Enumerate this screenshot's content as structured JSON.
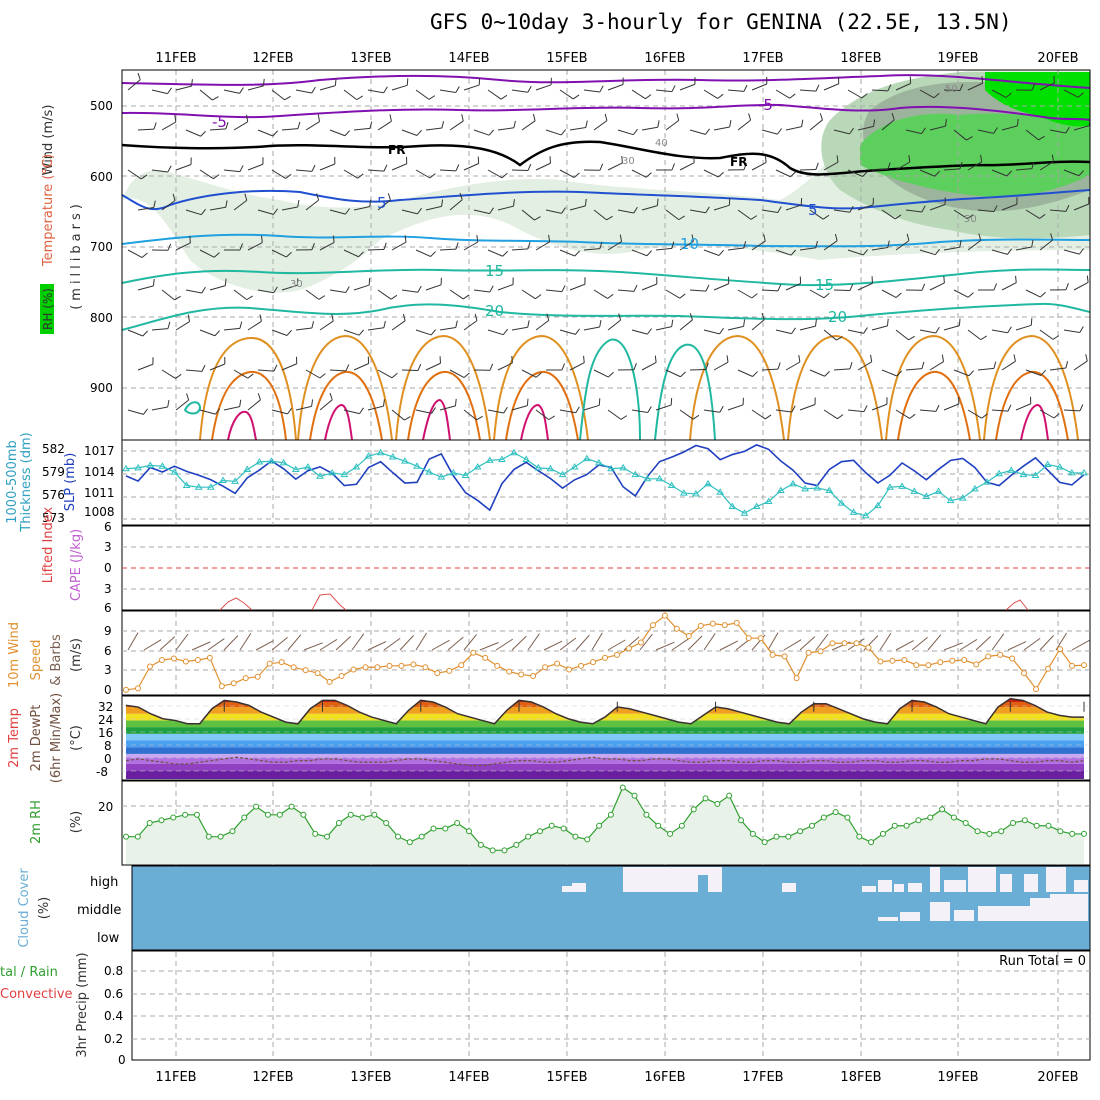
{
  "title": "GFS 0~10day 3-hourly for GENINA (22.5E, 13.5N)",
  "dates": [
    "11FEB",
    "12FEB",
    "13FEB",
    "14FEB",
    "15FEB",
    "16FEB",
    "17FEB",
    "18FEB",
    "19FEB",
    "20FEB"
  ],
  "colors": {
    "temp_warm": "#e09020",
    "temp_mid": "#20b8a0",
    "temp_cool": "#20a0e0",
    "temp_cold": "#2050d0",
    "temp_neg": "#8010b0",
    "freezing": "#000000",
    "rh_green": "#00e000",
    "slp": "#2040c0",
    "thickness": "#30c0c0",
    "wind10m": "#e09030",
    "dewpt": "#705040",
    "rh2m": "#30a030",
    "cloud": "#6aaed6",
    "cloud_gap": "#f4f2f8"
  },
  "panels": {
    "upper": {
      "ylabel_wind": "Wind (m/s)",
      "ylabel_temp": "Temperature (°C)",
      "ylabel_units": "(millibars)",
      "ylabel_rh": "RH (%)",
      "pressure_ticks": [
        "500",
        "600",
        "700",
        "800",
        "900"
      ],
      "contour_labels": [
        "-5",
        "-5",
        "FR",
        "FR",
        "5",
        "5",
        "10",
        "15",
        "15",
        "20",
        "20",
        "50",
        "30",
        "40",
        "30",
        "50"
      ]
    },
    "slp": {
      "ylabel_left": "1000-500mb",
      "ylabel_left2": "Thickness (dm)",
      "ylabel_right": "SLP (mb)",
      "thick_ticks": [
        "582",
        "579",
        "576",
        "573"
      ],
      "slp_ticks": [
        "1017",
        "1014",
        "1011",
        "1008"
      ]
    },
    "cape": {
      "ylabel_li": "Lifted Index",
      "ylabel_cape": "CAPE (J/kg)",
      "ticks": [
        "6",
        "3",
        "0",
        "3",
        "6"
      ]
    },
    "wind10": {
      "ylabel": "10m Wind",
      "ylabel2": "Speed",
      "ylabel3": "& Barbs",
      "units": "(m/s)",
      "ticks": [
        "9",
        "6",
        "3",
        "0"
      ]
    },
    "temp2m": {
      "ylabel": "2m Temp",
      "ylabel2": "2m DewPt",
      "ylabel3": "(6hr Min/Max)",
      "units": "(°C)",
      "ticks": [
        "32",
        "24",
        "16",
        "8",
        "0",
        "-8"
      ]
    },
    "rh2m": {
      "ylabel": "2m RH",
      "units": "(%)",
      "ticks": [
        "20"
      ]
    },
    "cloud": {
      "ylabel": "Cloud Cover",
      "units": "(%)",
      "levels": [
        "high",
        "middle",
        "low"
      ]
    },
    "precip": {
      "ylabel": "3hr Precip (mm)",
      "legend_total": "tal / Rain",
      "legend_conv": "Convective",
      "run_total": "Run Total = 0",
      "ticks": [
        "0.8",
        "0.6",
        "0.4",
        "0.2",
        "0"
      ]
    }
  },
  "chart_data": [
    {
      "type": "line",
      "name": "slp_thickness",
      "x_units": "3-hourly step from 10FEB 12Z",
      "series": [
        {
          "name": "SLP (mb)",
          "values": [
            1012.6,
            1011.8,
            1013.9,
            1013.2,
            1014.1,
            1013.3,
            1012.7,
            1012.0,
            1011.0,
            1009.9,
            1012.3,
            1013.5,
            1014.9,
            1013.7,
            1012.1,
            1013.4,
            1014.0,
            1013.0,
            1011.1,
            1011.3,
            1013.9,
            1014.8,
            1013.1,
            1011.5,
            1011.6,
            1015.2,
            1016.0,
            1012.6,
            1010.0,
            1008.8,
            1007.3,
            1011.4,
            1013.6,
            1014.7,
            1013.4,
            1012.2,
            1010.7,
            1012.0,
            1012.8,
            1014.3,
            1013.9,
            1010.9,
            1009.5,
            1012.5,
            1014.8,
            1015.5,
            1016.3,
            1017.3,
            1016.8,
            1015.1,
            1015.9,
            1016.4,
            1017.4,
            1016.7,
            1014.9,
            1013.5,
            1011.5,
            1011.1,
            1013.6,
            1014.8,
            1015.0,
            1013.1,
            1011.5,
            1012.7,
            1014.6,
            1013.4,
            1012.0,
            1013.6,
            1015.0,
            1015.3,
            1013.9,
            1011.6,
            1011.1,
            1012.7,
            1014.1,
            1015.4,
            1013.5,
            1011.6,
            1011.2,
            1012.8
          ]
        },
        {
          "name": "Thickness (dm)",
          "values": [
            579.2,
            579.3,
            579.6,
            579.5,
            578.8,
            577.2,
            577.0,
            577.0,
            577.8,
            577.7,
            579.1,
            580.0,
            580.1,
            579.9,
            579.1,
            579.4,
            578.3,
            578.7,
            578.5,
            579.4,
            580.7,
            581.1,
            580.6,
            580.1,
            579.5,
            578.8,
            578.2,
            578.7,
            578.4,
            579.4,
            580.2,
            580.3,
            581.1,
            580.3,
            579.3,
            579.2,
            578.5,
            579.4,
            580.4,
            579.9,
            579.2,
            579.3,
            578.5,
            578.0,
            578.0,
            577.2,
            576.3,
            576.2,
            577.4,
            576.4,
            574.7,
            573.9,
            574.7,
            575.3,
            576.6,
            577.4,
            576.8,
            576.9,
            576.6,
            575.1,
            574.0,
            573.6,
            574.8,
            577.0,
            577.1,
            576.5,
            575.9,
            576.5,
            575.4,
            575.7,
            576.8,
            577.6,
            578.6,
            579.0,
            578.5,
            578.4,
            579.7,
            579.4,
            578.7,
            578.7
          ]
        }
      ],
      "ylim_slp": [
        1005,
        1018
      ],
      "ylim_thickness": [
        572.5,
        582.5
      ]
    },
    {
      "type": "line",
      "name": "wind_10m",
      "series": [
        {
          "name": "10m Wind Speed (m/s)",
          "values": [
            0.3,
            0.5,
            3.5,
            4.4,
            4.6,
            4.2,
            4.4,
            4.7,
            0.8,
            1.2,
            1.9,
            2.1,
            3.9,
            4.1,
            3.4,
            3.0,
            2.6,
            1.4,
            2.2,
            3.1,
            3.4,
            3.4,
            3.6,
            3.6,
            3.8,
            3.4,
            2.6,
            2.9,
            3.7,
            5.4,
            4.7,
            3.6,
            2.8,
            2.4,
            2.2,
            3.4,
            3.9,
            3.1,
            3.6,
            4.1,
            4.7,
            5.1,
            6.0,
            6.8,
            9.2,
            10.5,
            8.7,
            7.7,
            9.1,
            9.4,
            9.2,
            9.5,
            7.4,
            7.4,
            5.1,
            4.9,
            1.9,
            5.4,
            5.6,
            6.7,
            6.7,
            6.7,
            6.1,
            4.2,
            4.3,
            4.4,
            3.7,
            3.7,
            4.1,
            4.3,
            4.4,
            3.8,
            4.9,
            5.1,
            4.6,
            2.6,
            0.4,
            3.2,
            5.9,
            3.6,
            3.7
          ]
        }
      ],
      "ylim": [
        0,
        11
      ]
    },
    {
      "type": "area",
      "name": "temp_2m",
      "series": [
        {
          "name": "2m Temp (°C)",
          "values": [
            31,
            30,
            26,
            23,
            22,
            20,
            20,
            29,
            34,
            33,
            31,
            27,
            24,
            21,
            20,
            29,
            34,
            34,
            31,
            27,
            24,
            22,
            20,
            28,
            34,
            33,
            30,
            26,
            24,
            22,
            20,
            28,
            34,
            33,
            30,
            26,
            23,
            21,
            20,
            24,
            30,
            29,
            27,
            25,
            23,
            21,
            20,
            25,
            30,
            29,
            27,
            25,
            23,
            21,
            20,
            27,
            32,
            32,
            29,
            26,
            23,
            21,
            20,
            29,
            34,
            33,
            30,
            26,
            24,
            22,
            20,
            30,
            35,
            34,
            31,
            27,
            25,
            24,
            24
          ]
        },
        {
          "name": "2m DewPt (°C)",
          "values": [
            -2,
            -1,
            -2,
            -3,
            -4,
            -4,
            -3,
            -2,
            -1,
            0,
            -1,
            -2,
            -3,
            -3,
            -2,
            -2,
            -1,
            -1,
            -2,
            -3,
            -3,
            -3,
            -2,
            -1,
            -1,
            -2,
            -3,
            -4,
            -5,
            -5,
            -4,
            -3,
            -2,
            -2,
            -3,
            -3,
            -2,
            -1,
            0,
            -1,
            -1,
            -2,
            -2,
            -1,
            -1,
            -2,
            -3,
            -3,
            -2,
            -2,
            -3,
            -3,
            -2,
            -2,
            -3,
            -3,
            -2,
            -2,
            -3,
            -3,
            -2,
            -2,
            -3,
            -3,
            -2,
            -2,
            -3,
            -3,
            -2,
            -2,
            -1,
            -1,
            -2,
            -3,
            -3,
            -2,
            -2,
            -3,
            -2
          ]
        }
      ],
      "ylim": [
        -13,
        36
      ]
    },
    {
      "type": "area",
      "name": "rh_2m",
      "series": [
        {
          "name": "2m RH (%)",
          "values": [
            10,
            10,
            15,
            16,
            17,
            18,
            18,
            10,
            10,
            12,
            17,
            21,
            18,
            18,
            21,
            18,
            11,
            10,
            15,
            18,
            17,
            18,
            15,
            10,
            8,
            10,
            13,
            13,
            15,
            12,
            7,
            5,
            5,
            7,
            10,
            12,
            14,
            13,
            10,
            9,
            14,
            18,
            28,
            25,
            18,
            14,
            11,
            14,
            20,
            24,
            22,
            25,
            16,
            11,
            8,
            10,
            10,
            12,
            14,
            17,
            19,
            17,
            10,
            8,
            11,
            14,
            14,
            16,
            17,
            20,
            17,
            15,
            12,
            11,
            12,
            15,
            16,
            14,
            14,
            12,
            11,
            11
          ]
        }
      ],
      "ylim": [
        0,
        30
      ]
    },
    {
      "type": "bar",
      "name": "precip_3hr",
      "series": [
        {
          "name": "3hr Precip (mm)",
          "values": []
        }
      ],
      "ylim": [
        0,
        0.9
      ]
    }
  ]
}
